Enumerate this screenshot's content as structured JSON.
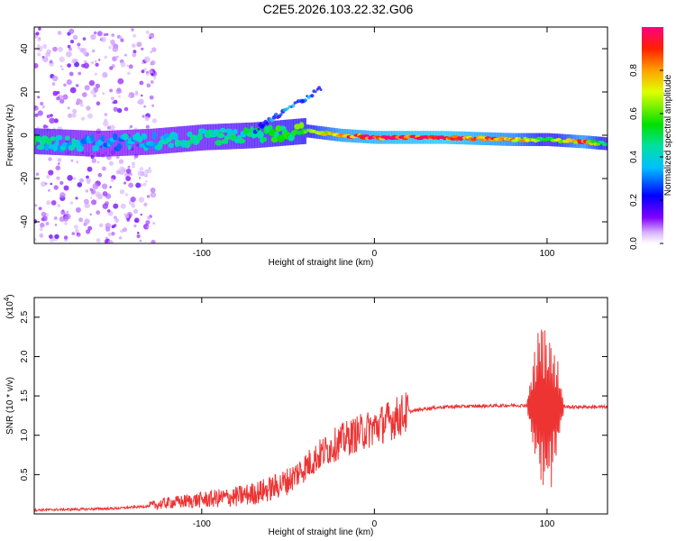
{
  "title": "C2E5.2026.103.22.32.G06",
  "chart_data": [
    {
      "type": "heatmap",
      "xlabel": "Height of straight line (km)",
      "ylabel": "Frequency (Hz)",
      "xlim": [
        -197,
        135
      ],
      "ylim": [
        -50,
        50
      ],
      "xticks": [
        -100,
        0,
        100
      ],
      "yticks": [
        -40,
        -20,
        0,
        20,
        40
      ],
      "colorbar": {
        "label": "Normalized spectral amplitude",
        "range": [
          0,
          1
        ],
        "ticks": [
          "0.0",
          "0.2",
          "0.4",
          "0.6",
          "0.8"
        ]
      },
      "ridge": [
        {
          "x": -190,
          "f": -3,
          "amp": 0.45
        },
        {
          "x": -160,
          "f": -4,
          "amp": 0.35
        },
        {
          "x": -130,
          "f": -3,
          "amp": 0.4
        },
        {
          "x": -100,
          "f": -1,
          "amp": 0.45
        },
        {
          "x": -70,
          "f": 0,
          "amp": 0.5
        },
        {
          "x": -40,
          "f": 2,
          "amp": 0.6
        },
        {
          "x": -20,
          "f": 0,
          "amp": 0.9
        },
        {
          "x": 0,
          "f": -1,
          "amp": 0.95
        },
        {
          "x": 40,
          "f": -1,
          "amp": 1.0
        },
        {
          "x": 80,
          "f": -2,
          "amp": 0.85
        },
        {
          "x": 100,
          "f": -2,
          "amp": 0.55
        },
        {
          "x": 120,
          "f": -3,
          "amp": 0.9
        },
        {
          "x": 135,
          "f": -4,
          "amp": 0.5
        }
      ]
    },
    {
      "type": "line",
      "xlabel": "Height of straight line (km)",
      "ylabel": "SNR (10 * v/v)",
      "y_multiplier": "(x10",
      "y_multiplier_exp": "4",
      "y_multiplier_close": ")",
      "xlim": [
        -197,
        135
      ],
      "ylim": [
        0,
        2.75
      ],
      "xticks": [
        -100,
        0,
        100
      ],
      "yticks": [
        "0.5",
        "1.0",
        "1.5",
        "2.0",
        "2.5"
      ],
      "series": [
        {
          "name": "SNR",
          "color": "#ee3333",
          "points": [
            [
              -197,
              0.05
            ],
            [
              -170,
              0.06
            ],
            [
              -150,
              0.07
            ],
            [
              -130,
              0.1
            ],
            [
              -120,
              0.14
            ],
            [
              -110,
              0.16
            ],
            [
              -100,
              0.18
            ],
            [
              -90,
              0.2
            ],
            [
              -80,
              0.22
            ],
            [
              -70,
              0.26
            ],
            [
              -60,
              0.32
            ],
            [
              -50,
              0.42
            ],
            [
              -40,
              0.6
            ],
            [
              -30,
              0.78
            ],
            [
              -20,
              0.92
            ],
            [
              -10,
              1.02
            ],
            [
              0,
              1.1
            ],
            [
              10,
              1.2
            ],
            [
              20,
              1.3
            ],
            [
              30,
              1.34
            ],
            [
              40,
              1.36
            ],
            [
              60,
              1.37
            ],
            [
              80,
              1.38
            ],
            [
              90,
              1.38
            ],
            [
              95,
              1.35
            ],
            [
              100,
              1.35
            ],
            [
              105,
              1.36
            ],
            [
              110,
              1.36
            ],
            [
              120,
              1.36
            ],
            [
              135,
              1.36
            ]
          ]
        }
      ]
    }
  ],
  "colors": {
    "line": "#ee3333",
    "axis": "#000000"
  }
}
